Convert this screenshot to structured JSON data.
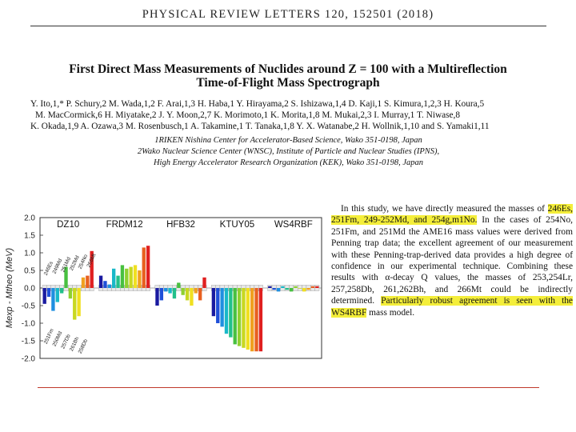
{
  "header": {
    "journal": "PHYSICAL REVIEW LETTERS 120, 152501 (2018)"
  },
  "paper": {
    "title_line1": "First Direct Mass Measurements of Nuclides around Z = 100 with a Multireflection",
    "title_line2": "Time-of-Flight Mass Spectrograph",
    "authors_line1": "Y. Ito,1,* P. Schury,2 M. Wada,1,2 F. Arai,1,3 H. Haba,1 Y. Hirayama,2 S. Ishizawa,1,4 D. Kaji,1 S. Kimura,1,2,3 H. Koura,5",
    "authors_line2": "M. MacCormick,6 H. Miyatake,2 J. Y. Moon,2,7 K. Morimoto,1 K. Morita,1,8 M. Mukai,2,3 I. Murray,1 T. Niwase,8",
    "authors_line3": "K. Okada,1,9 A. Ozawa,3 M. Rosenbusch,1 A. Takamine,1 T. Tanaka,1,8 Y. X. Watanabe,2 H. Wollnik,1,10 and S. Yamaki1,11",
    "affiliation1": "1RIKEN Nishina Center for Accelerator-Based Science, Wako 351-0198, Japan",
    "affiliation2": "2Wako Nuclear Science Center (WNSC), Institute of Particle and Nuclear Studies (IPNS),",
    "affiliation3": "High Energy Accelerator Research Organization (KEK), Wako 351-0198, Japan"
  },
  "summary": {
    "s1": "In this study, we have directly measured the masses of",
    "s2_hl": "246Es, 251Fm, 249-252Md, and 254g,m1No.",
    "s3": "In the cases of",
    "s4": "254No, 251Fm, and 251Md the AME16 mass values were derived from Penning trap data; the excellent agreement of our measurement with these Penning-trap-derived data provides a high degree of confidence in our experimental technique. Combining these results with α-decay Q values, the masses of 253,254Lr, 257,258Db, 261,262Bh, and 266Mt could be indirectly determined.",
    "s5_hl": "Particularly robust agreement is seen with the WS4RBF",
    "s6": "mass model."
  },
  "chart_data": {
    "type": "bar",
    "ylabel": "Mexp - Mtheo (MeV)",
    "ylim": [
      -2.0,
      2.0
    ],
    "yticks": [
      "2.0",
      "1.5",
      "1.0",
      "0.5",
      "0.0",
      "-0.5",
      "-1.0",
      "-1.5",
      "-2.0"
    ],
    "panel_labels": [
      "DZ10",
      "FRDM12",
      "HFB32",
      "KTUY05",
      "WS4RBF"
    ],
    "nuclide_labels_top": [
      "246Es",
      "249Md",
      "251Md",
      "252Md",
      "254No",
      "266Mt"
    ],
    "nuclide_labels_bottom": [
      "251Fm",
      "250Md",
      "257Db",
      "261Bh",
      "258Db"
    ],
    "colors": [
      "#1a1aa0",
      "#1f4fd8",
      "#1f8fe0",
      "#19b8c8",
      "#22c08a",
      "#48c040",
      "#8fd030",
      "#c8d820",
      "#f0e020",
      "#f0a020",
      "#e86020",
      "#e02020"
    ],
    "series": [
      {
        "name": "DZ10",
        "values": [
          -0.45,
          -0.25,
          -0.65,
          -0.4,
          -0.15,
          0.6,
          -0.3,
          -0.9,
          -0.8,
          0.3,
          0.35,
          1.05
        ]
      },
      {
        "name": "FRDM12",
        "values": [
          0.35,
          0.2,
          0.1,
          0.55,
          0.35,
          0.65,
          0.55,
          0.6,
          0.65,
          0.5,
          1.15,
          1.2
        ]
      },
      {
        "name": "HFB32",
        "values": [
          -0.5,
          -0.35,
          -0.1,
          -0.15,
          -0.3,
          0.15,
          -0.2,
          -0.35,
          -0.5,
          -0.15,
          -0.35,
          0.3
        ]
      },
      {
        "name": "KTUY05",
        "values": [
          -0.8,
          -1.0,
          -1.1,
          -1.3,
          -1.4,
          -1.6,
          -1.65,
          -1.7,
          -1.75,
          -1.8,
          -1.8,
          -1.8
        ]
      },
      {
        "name": "WS4RBF",
        "values": [
          0.05,
          -0.05,
          -0.1,
          0.05,
          -0.05,
          -0.1,
          0.05,
          0.0,
          -0.1,
          -0.05,
          0.05,
          0.05
        ]
      }
    ]
  }
}
